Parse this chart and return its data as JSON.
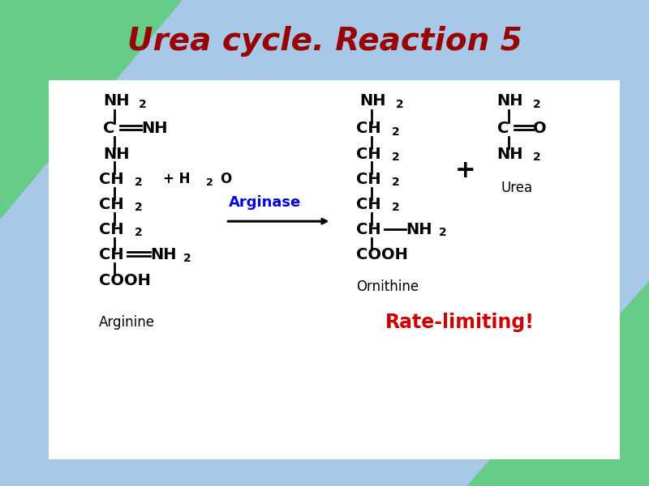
{
  "title": "Urea cycle. Reaction 5",
  "title_color": "#990000",
  "title_fontsize": 28,
  "title_fontstyle": "italic",
  "title_fontweight": "bold",
  "bg_outer": "#a8c8e8",
  "bg_triangle_tl_color": "#66cc88",
  "bg_triangle_br_color": "#66cc88",
  "bg_panel": "#ffffff",
  "arginase_label": "Arginase",
  "arginase_color": "#0000dd",
  "rate_limiting_label": "Rate-limiting!",
  "rate_limiting_color": "#cc0000",
  "ornithine_label": "Ornithine",
  "arginine_label": "Arginine",
  "urea_label": "Urea",
  "mol_fontsize": 14,
  "sub_fontsize": 10,
  "lw": 2.0
}
